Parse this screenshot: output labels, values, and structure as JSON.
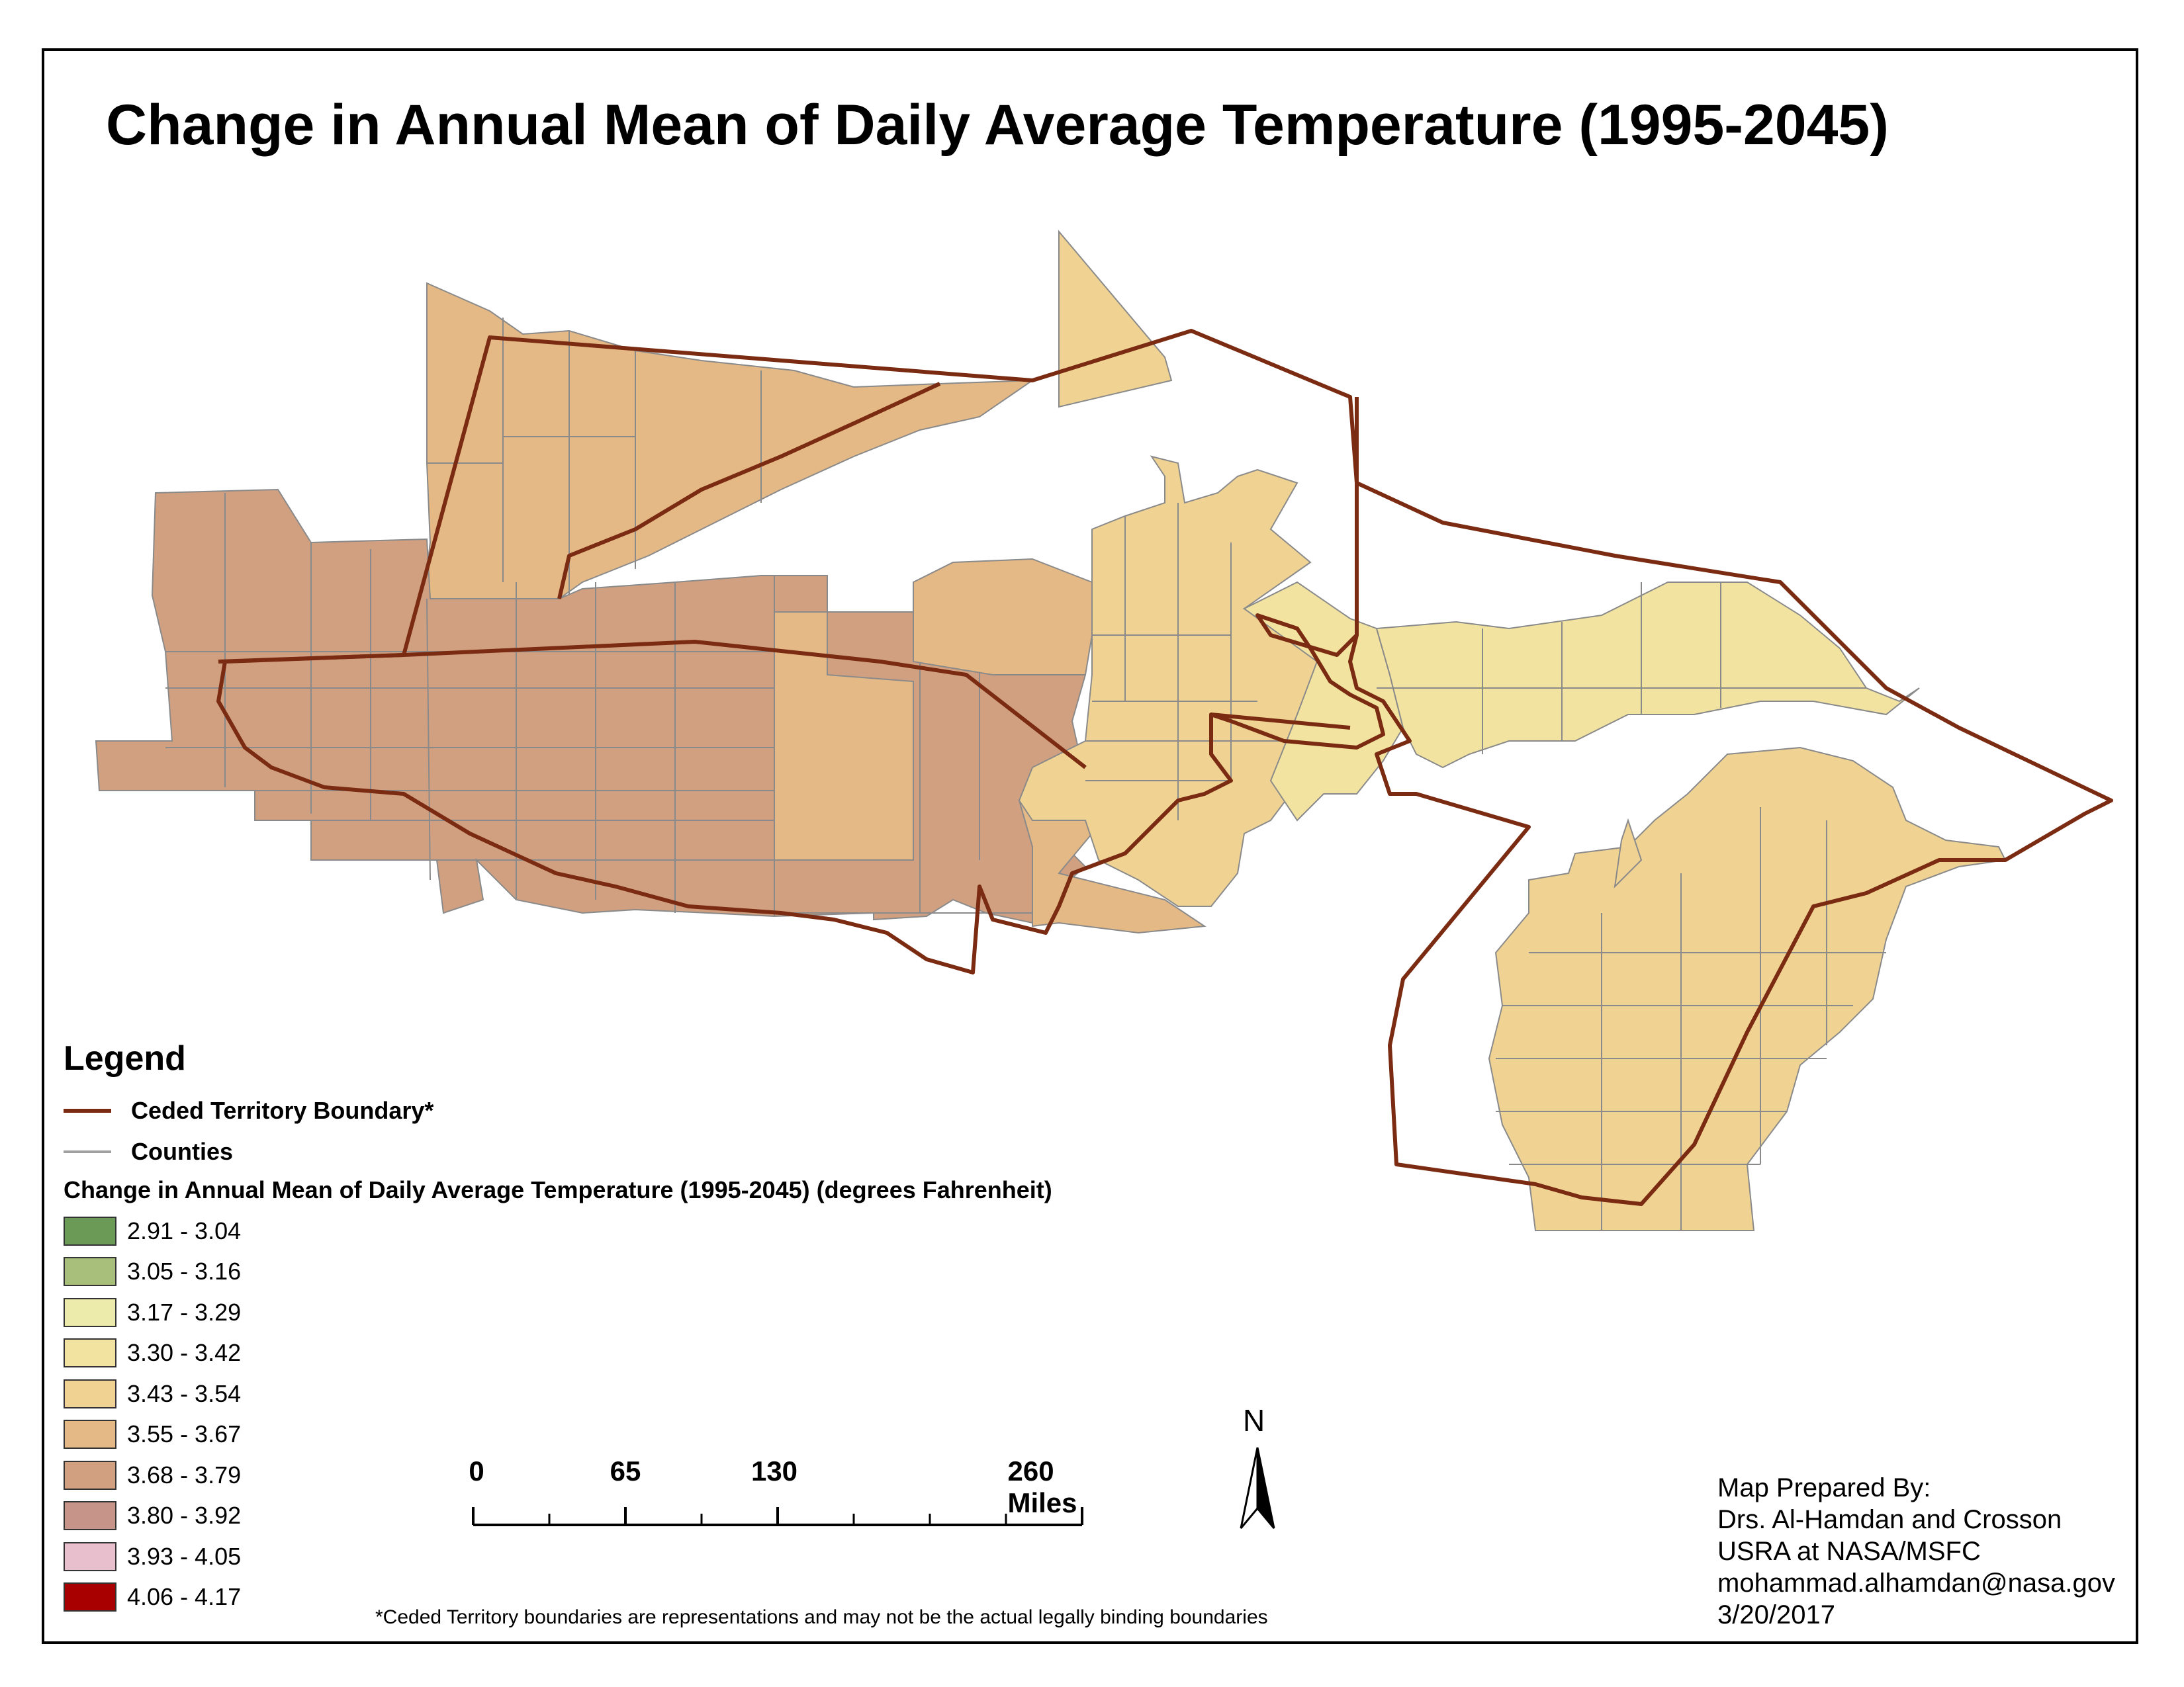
{
  "title": "Change in Annual Mean of Daily Average Temperature (1995-2045)",
  "legend": {
    "title": "Legend",
    "lines": [
      {
        "label": "Ceded Territory Boundary*",
        "color": "#7a2b12"
      },
      {
        "label": "Counties",
        "color": "#a0a0a0"
      }
    ],
    "scale_title": "Change in Annual Mean of Daily Average Temperature (1995-2045) (degrees Fahrenheit)",
    "classes": [
      {
        "label": "2.91 - 3.04",
        "color": "#6a9a55"
      },
      {
        "label": "3.05 - 3.16",
        "color": "#a7bf7a"
      },
      {
        "label": "3.17 - 3.29",
        "color": "#ecebab"
      },
      {
        "label": "3.30 - 3.42",
        "color": "#f2e4a0"
      },
      {
        "label": "3.43 - 3.54",
        "color": "#f0d393"
      },
      {
        "label": "3.55 - 3.67",
        "color": "#e5b985"
      },
      {
        "label": "3.68 - 3.79",
        "color": "#d1a080"
      },
      {
        "label": "3.80 - 3.92",
        "color": "#c79489"
      },
      {
        "label": "3.93 - 4.05",
        "color": "#e8bfcd"
      },
      {
        "label": "4.06 - 4.17",
        "color": "#a80000"
      }
    ]
  },
  "scale_bar": {
    "labels": [
      "0",
      "65",
      "130",
      "260 Miles"
    ]
  },
  "north_arrow": {
    "label": "N",
    "icon": "north-arrow-icon"
  },
  "credits": {
    "line1": "Map Prepared By:",
    "line2": "Drs. Al-Hamdan and Crosson",
    "line3": "USRA at NASA/MSFC",
    "line4": "mohammad.alhamdan@nasa.gov",
    "line5": "3/20/2017"
  },
  "footnote": "*Ceded Territory boundaries are representations and may not be the actual legally binding boundaries"
}
